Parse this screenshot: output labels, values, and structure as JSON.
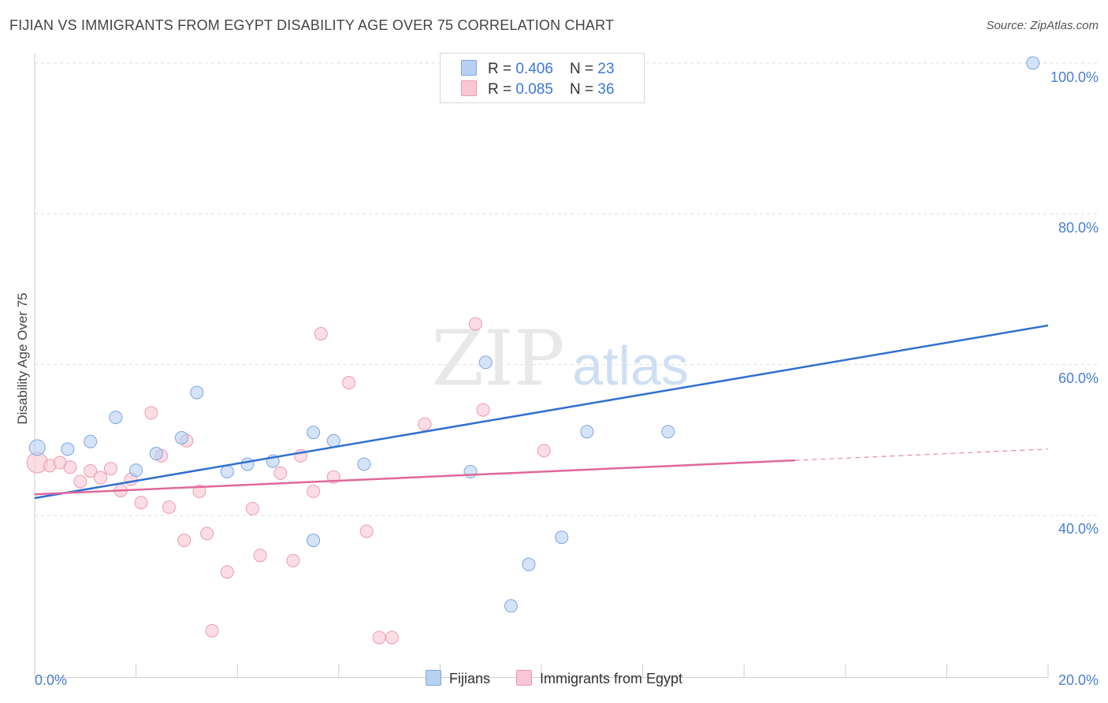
{
  "header": {
    "title": "FIJIAN VS IMMIGRANTS FROM EGYPT DISABILITY AGE OVER 75 CORRELATION CHART",
    "source": "Source: ZipAtlas.com"
  },
  "watermark": {
    "zip": "ZIP",
    "atlas": "atlas"
  },
  "legend_top": {
    "rows": [
      {
        "r_label": "R = ",
        "r_value": "0.406",
        "n_label": "N = ",
        "n_value": "23"
      },
      {
        "r_label": "R = ",
        "r_value": "0.085",
        "n_label": "N = ",
        "n_value": "36"
      }
    ]
  },
  "colors": {
    "fijians_fill": "#b8d1f3",
    "fijians_stroke": "#7fa6dd",
    "fijians_line": "#2f6fd0",
    "egypt_fill": "#f8c6d4",
    "egypt_stroke": "#ec9ab2",
    "egypt_line": "#e0689a",
    "tick_label": "#4a7fd0"
  },
  "chart_data": {
    "type": "scatter",
    "title": "FIJIAN VS IMMIGRANTS FROM EGYPT DISABILITY AGE OVER 75 CORRELATION CHART",
    "xlabel": "",
    "ylabel": "Disability Age Over 75",
    "xlim": [
      0,
      20
    ],
    "ylim": [
      18.5,
      102
    ],
    "x_tick_labels": [
      "0.0%",
      "20.0%"
    ],
    "y_ticks": [
      40,
      60,
      80,
      100
    ],
    "y_tick_labels": [
      "40.0%",
      "60.0%",
      "80.0%",
      "100.0%"
    ],
    "grid": "horizontal dashed",
    "legend": "top-center and bottom",
    "series": [
      {
        "name": "Fijians",
        "points": [
          [
            0.05,
            49.0
          ],
          [
            0.65,
            48.8
          ],
          [
            1.1,
            49.8
          ],
          [
            1.6,
            53.0
          ],
          [
            2.0,
            46.0
          ],
          [
            2.4,
            48.2
          ],
          [
            2.9,
            50.3
          ],
          [
            3.2,
            56.3
          ],
          [
            3.8,
            45.8
          ],
          [
            4.2,
            46.8
          ],
          [
            4.7,
            47.2
          ],
          [
            5.5,
            36.7
          ],
          [
            5.5,
            51.0
          ],
          [
            5.9,
            49.9
          ],
          [
            6.5,
            46.8
          ],
          [
            8.6,
            45.8
          ],
          [
            8.9,
            60.3
          ],
          [
            9.4,
            28.0
          ],
          [
            9.75,
            33.5
          ],
          [
            10.4,
            37.1
          ],
          [
            10.9,
            51.1
          ],
          [
            12.5,
            51.1
          ],
          [
            19.7,
            100.0
          ]
        ],
        "trend": {
          "x": [
            0,
            20
          ],
          "y": [
            42.3,
            65.2
          ]
        }
      },
      {
        "name": "Immigrants from Egypt",
        "points": [
          [
            0.05,
            47.0
          ],
          [
            0.3,
            46.6
          ],
          [
            0.5,
            47.0
          ],
          [
            0.7,
            46.4
          ],
          [
            0.9,
            44.5
          ],
          [
            1.1,
            45.9
          ],
          [
            1.3,
            45.0
          ],
          [
            1.5,
            46.2
          ],
          [
            1.7,
            43.3
          ],
          [
            1.9,
            44.8
          ],
          [
            2.1,
            41.7
          ],
          [
            2.3,
            53.6
          ],
          [
            2.5,
            47.9
          ],
          [
            2.65,
            41.1
          ],
          [
            2.95,
            36.7
          ],
          [
            3.0,
            49.9
          ],
          [
            3.25,
            43.2
          ],
          [
            3.4,
            37.6
          ],
          [
            3.5,
            24.7
          ],
          [
            3.8,
            32.5
          ],
          [
            4.3,
            40.9
          ],
          [
            4.45,
            34.7
          ],
          [
            4.85,
            45.6
          ],
          [
            5.1,
            34.0
          ],
          [
            5.25,
            47.9
          ],
          [
            5.5,
            43.2
          ],
          [
            5.65,
            64.1
          ],
          [
            5.9,
            45.1
          ],
          [
            6.2,
            57.6
          ],
          [
            6.55,
            37.9
          ],
          [
            6.8,
            23.8
          ],
          [
            7.05,
            23.8
          ],
          [
            7.7,
            52.1
          ],
          [
            8.7,
            65.4
          ],
          [
            8.85,
            54.0
          ],
          [
            10.05,
            48.6
          ]
        ],
        "trend": {
          "x": [
            0,
            15
          ],
          "y": [
            42.8,
            47.3
          ]
        },
        "trend_dashed": {
          "x": [
            15,
            20
          ],
          "y": [
            47.3,
            48.8
          ]
        }
      }
    ]
  },
  "axes": {
    "ylabel": "Disability Age Over 75",
    "x_left": "0.0%",
    "x_right": "20.0%",
    "y_ticks": [
      "40.0%",
      "60.0%",
      "80.0%",
      "100.0%"
    ]
  },
  "legend_bottom": {
    "series1": "Fijians",
    "series2": "Immigrants from Egypt"
  }
}
